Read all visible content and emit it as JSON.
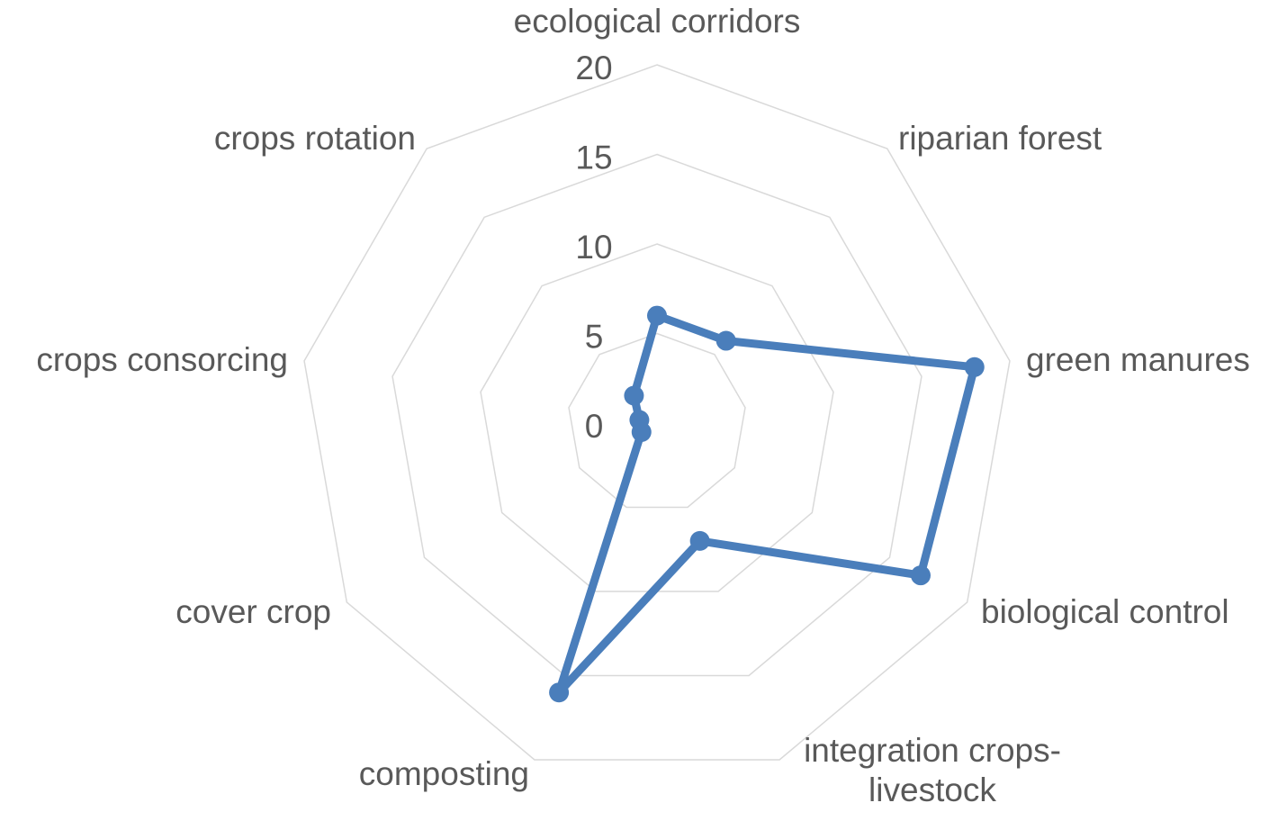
{
  "chart_data": {
    "type": "radar",
    "title": "",
    "categories": [
      "ecological corridors",
      "riparian forest",
      "green manures",
      "biological control",
      "integration crops-livestock",
      "composting",
      "cover crop",
      "crops consorcing",
      "crops rotation"
    ],
    "category_label_lines": [
      [
        "ecological corridors"
      ],
      [
        "riparian forest"
      ],
      [
        "green manures"
      ],
      [
        "biological control"
      ],
      [
        "integration crops-",
        "livestock"
      ],
      [
        "composting"
      ],
      [
        "cover crop"
      ],
      [
        "crops consorcing"
      ],
      [
        "crops rotation"
      ]
    ],
    "series": [
      {
        "values": [
          6,
          6,
          18,
          17,
          7,
          16,
          1,
          1,
          2
        ],
        "color": "#4a7ebb"
      }
    ],
    "r_ticks": [
      0,
      5,
      10,
      15,
      20
    ],
    "r_tick_labels": [
      "0",
      "5",
      "10",
      "15",
      "20"
    ],
    "rlim": [
      0,
      20
    ],
    "grid": true,
    "legend": "none"
  }
}
